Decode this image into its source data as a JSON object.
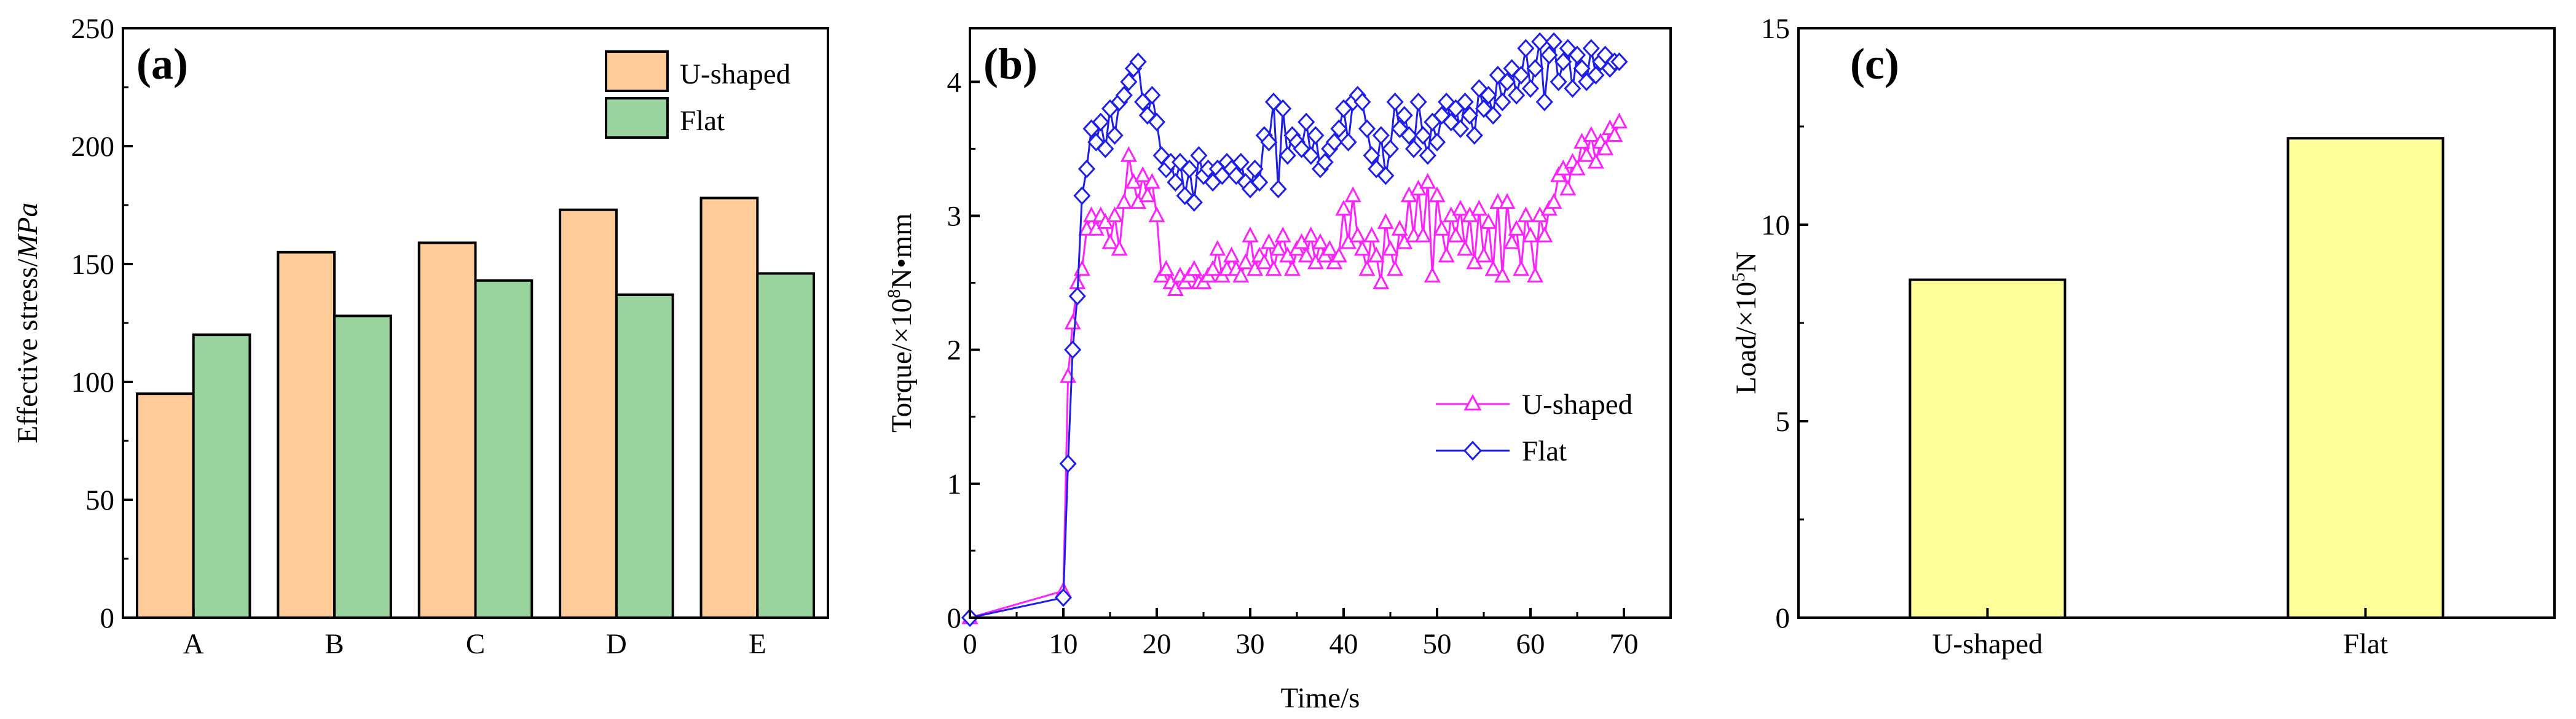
{
  "chart_data": [
    {
      "panel": "(a)",
      "type": "bar",
      "categories": [
        "A",
        "B",
        "C",
        "D",
        "E"
      ],
      "series": [
        {
          "name": "U-shaped",
          "color": "#FFCC99",
          "values": [
            95,
            155,
            159,
            173,
            178
          ]
        },
        {
          "name": "Flat",
          "color": "#99D49F",
          "values": [
            120,
            128,
            143,
            137,
            146
          ]
        }
      ],
      "ylabel_prefix": "Effective stress/",
      "ylabel_unit": "MPa",
      "ylim": [
        0,
        250
      ],
      "yticks": [
        "0",
        "50",
        "100",
        "150",
        "200",
        "250"
      ],
      "legend": "top-right"
    },
    {
      "panel": "(b)",
      "type": "line",
      "xlabel": "Time/s",
      "ylabel_prefix": "Torque/×10",
      "ylabel_sup": "8",
      "ylabel_suffix": "N•mm",
      "xlim": [
        0,
        75
      ],
      "ylim": [
        0,
        4.4
      ],
      "xticks": [
        "0",
        "10",
        "20",
        "30",
        "40",
        "50",
        "60",
        "70"
      ],
      "yticks": [
        "0",
        "1",
        "2",
        "3",
        "4"
      ],
      "legend": "bottom-right",
      "series": [
        {
          "name": "U-shaped",
          "color": "#FF22FF",
          "marker": "triangle",
          "x": [
            0,
            10,
            10.5,
            11,
            11.5,
            12,
            12.5,
            13,
            13.5,
            14,
            14.5,
            15,
            15.5,
            16,
            16.5,
            17,
            17.5,
            18,
            18.5,
            19,
            19.5,
            20,
            20.5,
            21,
            21.5,
            22,
            22.5,
            23,
            23.5,
            24,
            24.5,
            25,
            25.5,
            26,
            26.5,
            27,
            27.5,
            28,
            28.5,
            29,
            29.5,
            30,
            30.5,
            31,
            31.5,
            32,
            32.5,
            33,
            33.5,
            34,
            34.5,
            35,
            35.5,
            36,
            36.5,
            37,
            37.5,
            38,
            38.5,
            39,
            39.5,
            40,
            40.5,
            41,
            41.5,
            42,
            42.5,
            43,
            43.5,
            44,
            44.5,
            45,
            45.5,
            46,
            46.5,
            47,
            47.5,
            48,
            48.5,
            49,
            49.5,
            50,
            50.5,
            51,
            51.5,
            52,
            52.5,
            53,
            53.5,
            54,
            54.5,
            55,
            55.5,
            56,
            56.5,
            57,
            57.5,
            58,
            58.5,
            59,
            59.5,
            60,
            60.5,
            61,
            61.5,
            62,
            62.5,
            63,
            63.5,
            64,
            64.5,
            65,
            65.5,
            66,
            66.5,
            67,
            67.5,
            68,
            68.5,
            69,
            69.5
          ],
          "y": [
            0,
            0.2,
            1.8,
            2.2,
            2.5,
            2.6,
            2.9,
            3.0,
            2.9,
            3.0,
            2.95,
            2.8,
            3.0,
            2.75,
            3.1,
            3.45,
            3.25,
            3.1,
            3.3,
            3.15,
            3.25,
            3.0,
            2.55,
            2.6,
            2.5,
            2.45,
            2.55,
            2.5,
            2.55,
            2.6,
            2.5,
            2.5,
            2.55,
            2.6,
            2.75,
            2.55,
            2.6,
            2.7,
            2.6,
            2.55,
            2.65,
            2.85,
            2.6,
            2.7,
            2.65,
            2.8,
            2.6,
            2.75,
            2.85,
            2.7,
            2.6,
            2.75,
            2.8,
            2.7,
            2.85,
            2.65,
            2.8,
            2.7,
            2.75,
            2.65,
            2.7,
            3.05,
            2.8,
            3.15,
            2.85,
            2.75,
            2.6,
            2.85,
            2.7,
            2.5,
            2.95,
            2.75,
            2.6,
            2.9,
            2.8,
            3.15,
            2.85,
            3.2,
            2.85,
            3.25,
            2.55,
            3.15,
            2.9,
            2.7,
            3.0,
            2.85,
            3.05,
            2.75,
            3.0,
            2.65,
            3.05,
            2.7,
            2.95,
            2.6,
            3.1,
            2.55,
            3.1,
            2.8,
            2.9,
            2.6,
            3.0,
            2.85,
            2.55,
            3.0,
            2.85,
            3.05,
            3.1,
            3.3,
            3.35,
            3.2,
            3.4,
            3.35,
            3.55,
            3.45,
            3.6,
            3.4,
            3.55,
            3.5,
            3.65,
            3.6,
            3.7
          ]
        },
        {
          "name": "Flat",
          "color": "#1E1EE6",
          "marker": "diamond",
          "x": [
            0,
            10,
            10.5,
            11,
            11.5,
            12,
            12.5,
            13,
            13.5,
            14,
            14.5,
            15,
            15.5,
            16,
            16.5,
            17,
            17.5,
            18,
            18.5,
            19,
            19.5,
            20,
            20.5,
            21,
            21.5,
            22,
            22.5,
            23,
            23.5,
            24,
            24.5,
            25,
            25.5,
            26,
            26.5,
            27,
            27.5,
            28,
            28.5,
            29,
            29.5,
            30,
            30.5,
            31,
            31.5,
            32,
            32.5,
            33,
            33.5,
            34,
            34.5,
            35,
            35.5,
            36,
            36.5,
            37,
            37.5,
            38,
            38.5,
            39,
            39.5,
            40,
            40.5,
            41,
            41.5,
            42,
            42.5,
            43,
            43.5,
            44,
            44.5,
            45,
            45.5,
            46,
            46.5,
            47,
            47.5,
            48,
            48.5,
            49,
            49.5,
            50,
            50.5,
            51,
            51.5,
            52,
            52.5,
            53,
            53.5,
            54,
            54.5,
            55,
            55.5,
            56,
            56.5,
            57,
            57.5,
            58,
            58.5,
            59,
            59.5,
            60,
            60.5,
            61,
            61.5,
            62,
            62.5,
            63,
            63.5,
            64,
            64.5,
            65,
            65.5,
            66,
            66.5,
            67,
            67.5,
            68,
            68.5,
            69,
            69.5
          ],
          "y": [
            0,
            0.15,
            1.15,
            2.0,
            2.4,
            3.15,
            3.35,
            3.65,
            3.55,
            3.7,
            3.5,
            3.8,
            3.6,
            3.85,
            3.9,
            4.0,
            4.1,
            4.15,
            3.85,
            3.75,
            3.9,
            3.7,
            3.45,
            3.35,
            3.4,
            3.25,
            3.4,
            3.15,
            3.35,
            3.1,
            3.45,
            3.3,
            3.35,
            3.25,
            3.35,
            3.3,
            3.4,
            3.35,
            3.3,
            3.4,
            3.25,
            3.2,
            3.35,
            3.25,
            3.6,
            3.55,
            3.85,
            3.2,
            3.8,
            3.45,
            3.6,
            3.55,
            3.5,
            3.7,
            3.45,
            3.6,
            3.35,
            3.4,
            3.5,
            3.55,
            3.65,
            3.8,
            3.55,
            3.85,
            3.9,
            3.85,
            3.65,
            3.45,
            3.35,
            3.6,
            3.3,
            3.5,
            3.85,
            3.65,
            3.75,
            3.6,
            3.5,
            3.85,
            3.6,
            3.45,
            3.7,
            3.55,
            3.75,
            3.85,
            3.7,
            3.8,
            3.65,
            3.85,
            3.75,
            3.6,
            3.95,
            3.8,
            3.9,
            3.75,
            4.05,
            3.85,
            4.0,
            4.1,
            3.9,
            4.05,
            4.25,
            3.95,
            4.1,
            4.3,
            3.85,
            4.2,
            4.3,
            4.0,
            4.15,
            4.25,
            3.95,
            4.2,
            4.1,
            4.0,
            4.25,
            4.05,
            4.15,
            4.2,
            4.1,
            4.15,
            4.15
          ]
        }
      ]
    },
    {
      "panel": "(c)",
      "type": "bar",
      "categories": [
        "U-shaped",
        "Flat"
      ],
      "values": [
        8.6,
        12.2
      ],
      "color": "#FFFF99",
      "ylabel_prefix": "Load/×10",
      "ylabel_sup": "5",
      "ylabel_suffix": "N",
      "ylim": [
        0,
        15
      ],
      "yticks": [
        "0",
        "5",
        "10",
        "15"
      ]
    }
  ]
}
